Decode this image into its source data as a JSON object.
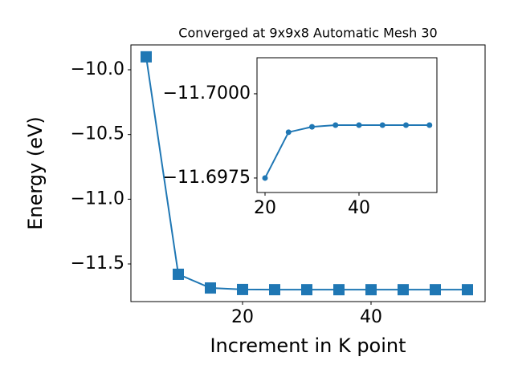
{
  "chart_data": [
    {
      "type": "line",
      "title": "Converged at 9x9x8 Automatic Mesh 30",
      "x_label": "Increment in K point",
      "y_label": "Energy (eV)",
      "x": [
        5,
        10,
        15,
        20,
        25,
        30,
        35,
        40,
        45,
        50,
        55
      ],
      "series": [
        {
          "color": "#1f77b4",
          "marker": "square",
          "values": [
            -9.9,
            -11.58,
            -11.686,
            -11.6975,
            -11.6989,
            -11.699,
            -11.6991,
            -11.6991,
            -11.6991,
            -11.6991,
            -11.6991
          ]
        }
      ],
      "xlim": [
        2.625,
        57.75
      ],
      "xticks": [
        20,
        40
      ],
      "ylim": [
        -11.791,
        -9.808
      ],
      "yticks": [
        {
          "value": -11.5,
          "label": "−11.5"
        },
        {
          "value": -11.0,
          "label": "−11.0"
        },
        {
          "value": -10.5,
          "label": "−10.5"
        },
        {
          "value": -10.0,
          "label": "−10.0"
        }
      ]
    },
    {
      "type": "line",
      "x": [
        20,
        25,
        30,
        35,
        40,
        45,
        50,
        55
      ],
      "series": [
        {
          "color": "#1f77b4",
          "marker": "circle",
          "values": [
            -11.6975,
            -11.69886,
            -11.69902,
            -11.69907,
            -11.69907,
            -11.69907,
            -11.69907,
            -11.69907
          ]
        }
      ],
      "xlim": [
        18.29,
        56.58
      ],
      "xticks": [
        20,
        40
      ],
      "ylim": [
        -11.69707,
        -11.70107
      ],
      "yticks": [
        {
          "value": -11.6975,
          "label": "−11.6975"
        },
        {
          "value": -11.7,
          "label": "−11.7000"
        }
      ]
    }
  ]
}
